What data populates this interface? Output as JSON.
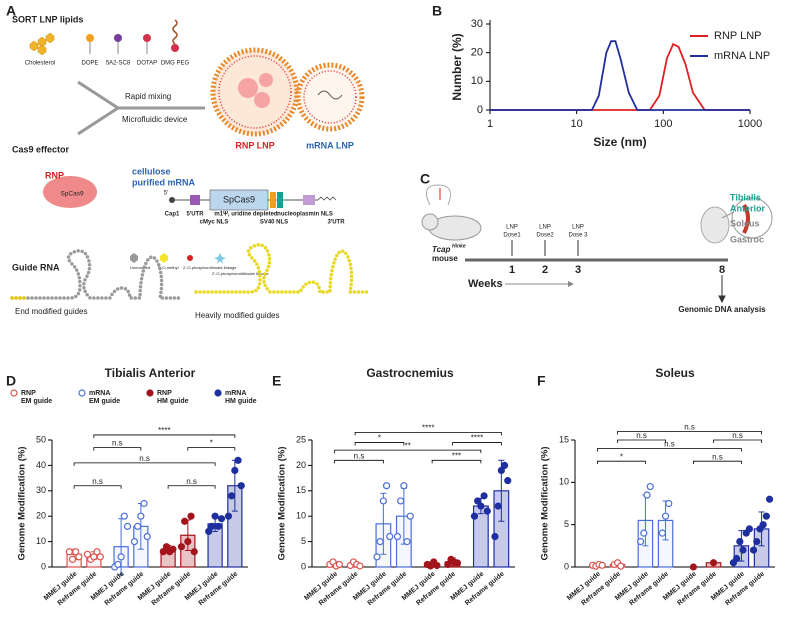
{
  "panel_labels": [
    "A",
    "B",
    "C",
    "D",
    "E",
    "F"
  ],
  "panel_a": {
    "lipids_title": "SORT LNP lipids",
    "lipids": [
      "Cholesterol",
      "DOPE",
      "5A2-SC8",
      "DOTAP",
      "DMG PEG"
    ],
    "mixing": [
      "Rapid mixing",
      "Microfluidic device"
    ],
    "lnps": [
      "RNP LNP",
      "mRNA LNP"
    ],
    "cas9_title": "Cas9 effector",
    "rnp": "RNP",
    "rnp_protein": "SpCas9",
    "mrna_title": [
      "cellulose",
      "purified mRNA"
    ],
    "construct_gene": "SpCas9",
    "construct_labels": [
      "5'",
      "Cap1",
      "5'UTR",
      "cMyc NLS",
      "m1Ψ, uridine depleted",
      "SV40 NLS",
      "nucleoplasmin NLS",
      "3'UTR"
    ],
    "guide_title": "Guide RNA",
    "guide_legend": [
      "Unmodified",
      "2'-O-methyl",
      "2'-O-phosphorothioate linkage",
      "2'-O-phosphorodithioate linkage"
    ],
    "guides": [
      "End modified guides",
      "Heavily modified guides"
    ]
  },
  "panel_c": {
    "mouse": "Tcap",
    "mouse_sup": "Hinke",
    "mouse_word": "mouse",
    "doses": [
      [
        "LNP",
        "Dose1"
      ],
      [
        "LNP",
        "Dose2"
      ],
      [
        "LNP",
        "Dose 3"
      ]
    ],
    "weeks": [
      "1",
      "2",
      "3",
      "8"
    ],
    "weeks_label": "Weeks",
    "analysis": "Genomic DNA analysis",
    "muscles": [
      [
        "Tibialis",
        "Anterior"
      ],
      [
        "Soleus"
      ],
      [
        "Gastroc"
      ]
    ]
  },
  "chart_data": [
    {
      "type": "line",
      "xlabel": "Size (nm)",
      "ylabel": "Number (%)",
      "xlog": true,
      "xlim": [
        1,
        1000
      ],
      "xticks": [
        1,
        10,
        100,
        1000
      ],
      "ylim": [
        0,
        30
      ],
      "yticks": [
        0,
        10,
        20,
        30
      ],
      "legend": "right",
      "series": [
        {
          "name": "RNP LNP",
          "color": "#e02020",
          "x": [
            1,
            70,
            90,
            110,
            130,
            150,
            180,
            220,
            300,
            1000
          ],
          "values": [
            0,
            0,
            5,
            18,
            23,
            22,
            16,
            6,
            0,
            0
          ]
        },
        {
          "name": "mRNA LNP",
          "color": "#2030a0",
          "x": [
            1,
            15,
            18,
            22,
            25,
            28,
            32,
            40,
            50,
            1000
          ],
          "values": [
            0,
            0,
            5,
            20,
            24,
            24,
            18,
            6,
            0,
            0
          ]
        }
      ]
    },
    {
      "type": "bar",
      "title": "Tibialis Anterior",
      "ylabel": "Genome Modification (%)",
      "categories": [
        "MMEJ guide",
        "Reframe guide",
        "MMEJ guide",
        "Reframe guide",
        "MMEJ guide",
        "Reframe guide",
        "MMEJ guide",
        "Reframe guide"
      ],
      "values": [
        5,
        4.5,
        8,
        16,
        7,
        12.5,
        17,
        32
      ],
      "errors": [
        2,
        1.5,
        11,
        9,
        1.5,
        6,
        3,
        10
      ],
      "points": [
        [
          6,
          3,
          6,
          4
        ],
        [
          5,
          3,
          4,
          6,
          4
        ],
        [
          0,
          1,
          4,
          20,
          16
        ],
        [
          10,
          16,
          20,
          25,
          12
        ],
        [
          6,
          8,
          6,
          7
        ],
        [
          8,
          18,
          10,
          20,
          6
        ],
        [
          14,
          16,
          20,
          16,
          19
        ],
        [
          20,
          28,
          38,
          42,
          32
        ]
      ],
      "colors": [
        "#d9534f",
        "#d9534f",
        "#4a6fd6",
        "#4a6fd6",
        "#a3141c",
        "#a3141c",
        "#1f2f9e",
        "#1f2f9e"
      ],
      "filled": [
        false,
        false,
        false,
        false,
        true,
        true,
        true,
        true
      ],
      "ylim": [
        0,
        50
      ],
      "yticks": [
        0,
        10,
        20,
        30,
        40,
        50
      ],
      "brackets": [
        {
          "from": 1,
          "to": 7,
          "y": 52,
          "label": "****"
        },
        {
          "from": 1,
          "to": 3,
          "y": 47,
          "label": "n.s"
        },
        {
          "from": 5,
          "to": 7,
          "y": 47,
          "label": "*"
        },
        {
          "from": 0,
          "to": 6,
          "y": 41,
          "label": "n.s"
        },
        {
          "from": 0,
          "to": 2,
          "y": 32,
          "label": "n.s"
        },
        {
          "from": 4,
          "to": 6,
          "y": 32,
          "label": "n.s"
        }
      ],
      "legend": [
        {
          "name": [
            "RNP",
            "EM guide"
          ],
          "color": "#d9534f",
          "filled": false
        },
        {
          "name": [
            "mRNA",
            "EM guide"
          ],
          "color": "#4a6fd6",
          "filled": false
        },
        {
          "name": [
            "RNP",
            "HM guide"
          ],
          "color": "#a3141c",
          "filled": true
        },
        {
          "name": [
            "mRNA",
            "HM guide"
          ],
          "color": "#1f2f9e",
          "filled": true
        }
      ]
    },
    {
      "type": "bar",
      "title": "Gastrocnemius",
      "ylabel": "Genome Modification (%)",
      "categories": [
        "MMEJ guide",
        "Reframe guide",
        "MMEJ guide",
        "Reframe guide",
        "MMEJ guide",
        "Reframe guide",
        "MMEJ guide",
        "Reframe guide"
      ],
      "values": [
        0.5,
        0.5,
        8.5,
        10,
        0.5,
        1,
        12,
        15
      ],
      "errors": [
        0.5,
        0.4,
        6,
        5.5,
        0.5,
        0.8,
        1.5,
        6
      ],
      "points": [
        [
          0.5,
          1,
          0.2,
          0.5
        ],
        [
          0.3,
          1,
          0.5,
          0.2
        ],
        [
          2,
          5,
          13,
          16,
          6
        ],
        [
          6,
          13,
          16,
          5,
          10
        ],
        [
          0.5,
          0.2,
          1,
          0.3
        ],
        [
          0.5,
          1.5,
          1,
          0.8
        ],
        [
          10,
          13,
          12,
          14,
          11
        ],
        [
          6,
          12,
          19,
          20,
          17
        ]
      ],
      "colors": [
        "#d9534f",
        "#d9534f",
        "#4a6fd6",
        "#4a6fd6",
        "#a3141c",
        "#a3141c",
        "#1f2f9e",
        "#1f2f9e"
      ],
      "filled": [
        false,
        false,
        false,
        false,
        true,
        true,
        true,
        true
      ],
      "ylim": [
        0,
        25
      ],
      "yticks": [
        0,
        5,
        10,
        15,
        20,
        25
      ],
      "brackets": [
        {
          "from": 1,
          "to": 7,
          "y": 26.5,
          "label": "****"
        },
        {
          "from": 1,
          "to": 3,
          "y": 24.5,
          "label": "*"
        },
        {
          "from": 5,
          "to": 7,
          "y": 24.5,
          "label": "****"
        },
        {
          "from": 0,
          "to": 6,
          "y": 23,
          "label": "**"
        },
        {
          "from": 4,
          "to": 6,
          "y": 21,
          "label": "***"
        },
        {
          "from": 0,
          "to": 2,
          "y": 21,
          "label": "n.s"
        }
      ]
    },
    {
      "type": "bar",
      "title": "Soleus",
      "ylabel": "Genome Modification (%)",
      "categories": [
        "MMEJ guide",
        "Reframe guide",
        "MMEJ guide",
        "Reframe guide",
        "MMEJ guide",
        "Reframe guide",
        "MMEJ guide",
        "Reframe guide"
      ],
      "values": [
        0.2,
        0.3,
        5.5,
        5.5,
        0,
        0.5,
        2.5,
        4.5
      ],
      "errors": [
        0.2,
        0.3,
        3,
        2.3,
        0,
        0.1,
        1.8,
        2
      ],
      "points": [
        [
          0.2,
          0.1,
          0.3,
          0.2
        ],
        [
          0.3,
          0.5,
          0.1
        ],
        [
          3,
          4,
          8.5,
          9.5
        ],
        [
          4,
          6,
          7.5
        ],
        [
          0
        ],
        [
          0.5
        ],
        [
          0.5,
          1,
          3,
          2,
          4,
          4.5
        ],
        [
          2,
          3,
          4.5,
          5,
          6,
          8
        ]
      ],
      "colors": [
        "#d9534f",
        "#d9534f",
        "#4a6fd6",
        "#4a6fd6",
        "#a3141c",
        "#a3141c",
        "#1f2f9e",
        "#1f2f9e"
      ],
      "filled": [
        false,
        false,
        false,
        false,
        true,
        true,
        true,
        true
      ],
      "ylim": [
        0,
        15
      ],
      "yticks": [
        0,
        5,
        10,
        15
      ],
      "brackets": [
        {
          "from": 1,
          "to": 7,
          "y": 16,
          "label": "n.s"
        },
        {
          "from": 1,
          "to": 3,
          "y": 15,
          "label": "n.s"
        },
        {
          "from": 5,
          "to": 7,
          "y": 15,
          "label": "n.s"
        },
        {
          "from": 0,
          "to": 6,
          "y": 14,
          "label": "n.s"
        },
        {
          "from": 4,
          "to": 6,
          "y": 12.5,
          "label": "n.s"
        },
        {
          "from": 0,
          "to": 2,
          "y": 12.5,
          "label": "*"
        }
      ]
    }
  ]
}
